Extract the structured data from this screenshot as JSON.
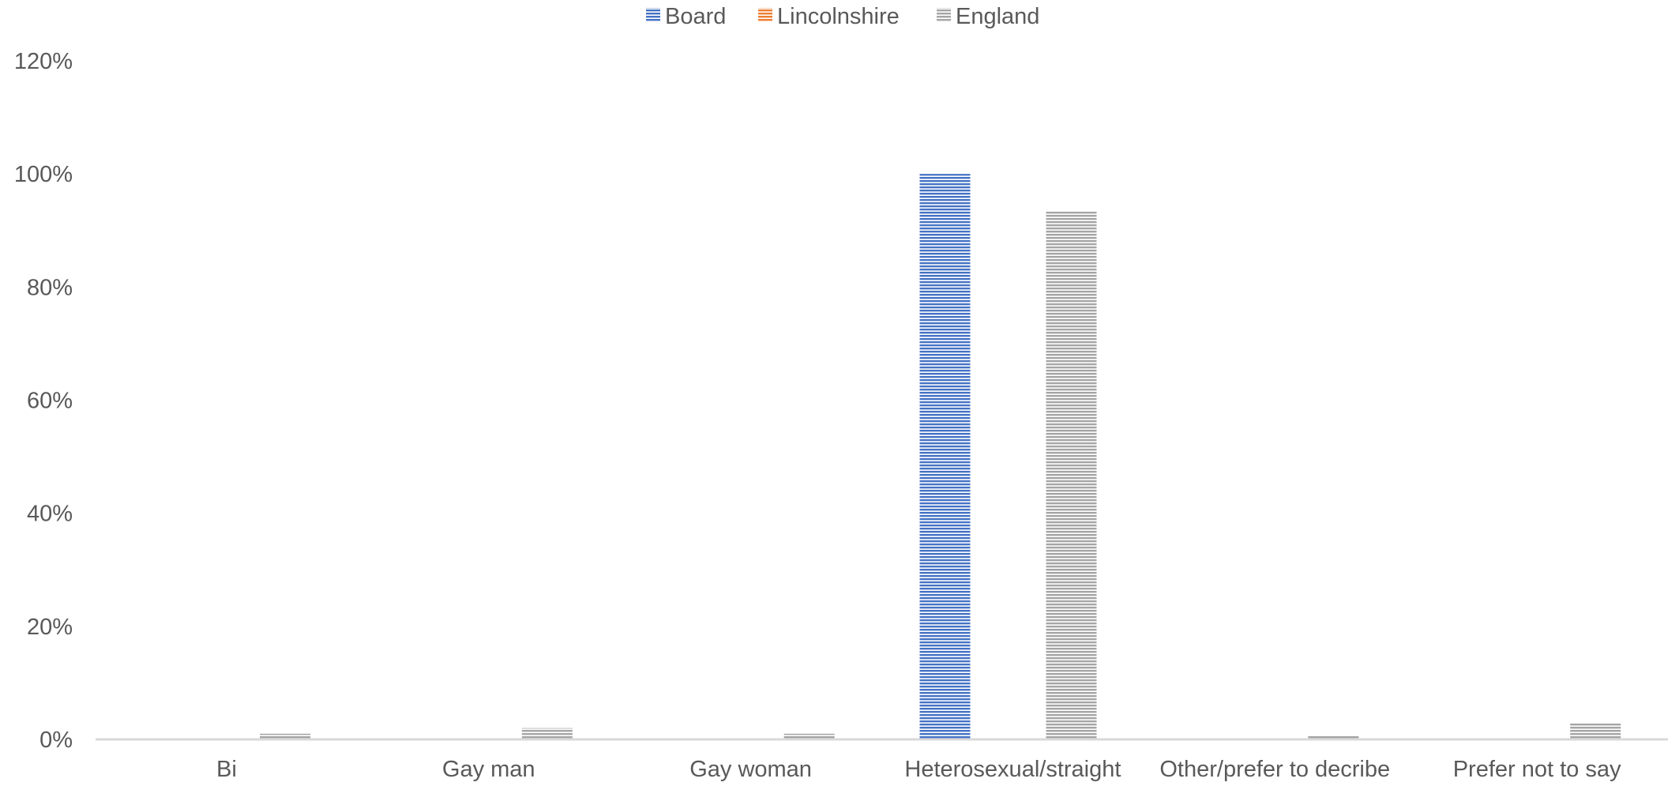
{
  "colors": {
    "board": "#4472c4",
    "lincolnshire": "#ed7d31",
    "england": "#a5a5a5",
    "axis": "#d9d9d9",
    "text": "#595959"
  },
  "chart_data": {
    "type": "bar",
    "categories": [
      "Bi",
      "Gay man",
      "Gay woman",
      "Heterosexual/straight",
      "Other/prefer to decribe",
      "Prefer not to say"
    ],
    "series": [
      {
        "name": "Board",
        "color_key": "board",
        "values": [
          0,
          0,
          0,
          100,
          0,
          0
        ]
      },
      {
        "name": "Lincolnshire",
        "color_key": "lincolnshire",
        "values": [
          0,
          0,
          0,
          0,
          0,
          0
        ]
      },
      {
        "name": "England",
        "color_key": "england",
        "values": [
          1,
          2,
          1,
          93.5,
          0.7,
          3
        ]
      }
    ],
    "y_ticks": [
      "0%",
      "20%",
      "40%",
      "60%",
      "80%",
      "100%",
      "120%"
    ],
    "ylim": [
      0,
      120
    ],
    "legend_position": "top-center",
    "grid": false,
    "pattern": "horizontal-stripes"
  }
}
